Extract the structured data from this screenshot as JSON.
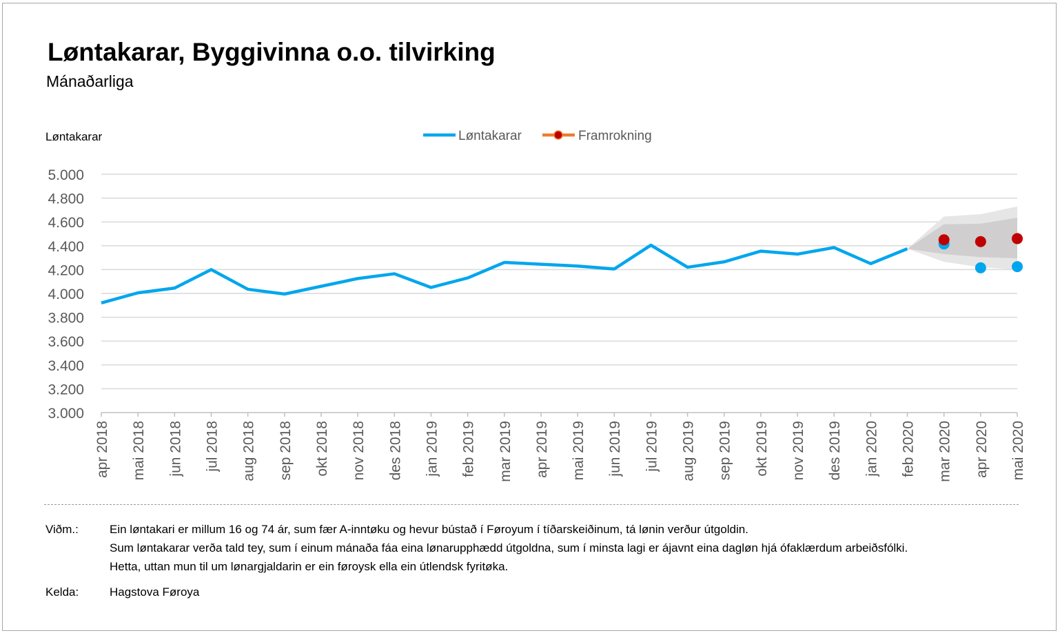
{
  "title": "Løntakarar, Byggivinna o.o. tilvirking",
  "subtitle": "Mánaðarliga",
  "notes": {
    "label": "Viðm.:",
    "lines": [
      "Ein løntakari er millum 16 og 74 ár, sum fær A-inntøku og hevur bústað í Føroyum í tíðarskeiðinum, tá lønin verður útgoldin.",
      "Sum løntakarar verða tald tey, sum í einum mánaða fáa eina lønarupphædd útgoldna, sum í minsta lagi er ájavnt eina dagløn hjá ófaklærdum arbeiðsfólki.",
      "Hetta, uttan mun til um lønargjaldarin er ein føroysk ella ein útlendsk fyritøka."
    ],
    "source_label": "Kelda:",
    "source": "Hagstova Føroya"
  },
  "chart_data": {
    "type": "line",
    "ylabel": "Løntakarar",
    "ylim": [
      3000,
      5000
    ],
    "yticks": [
      "3.000",
      "3.200",
      "3.400",
      "3.600",
      "3.800",
      "4.000",
      "4.200",
      "4.400",
      "4.600",
      "4.800",
      "5.000"
    ],
    "grid": true,
    "legend_placement": "top-center",
    "categories": [
      "apr 2018",
      "mai 2018",
      "jun 2018",
      "jul 2018",
      "aug 2018",
      "sep 2018",
      "okt 2018",
      "nov 2018",
      "des 2018",
      "jan 2019",
      "feb 2019",
      "mar 2019",
      "apr 2019",
      "mai 2019",
      "jun 2019",
      "jul 2019",
      "aug 2019",
      "sep 2019",
      "okt 2019",
      "nov 2019",
      "des 2019",
      "jan 2020",
      "feb 2020",
      "mar 2020",
      "apr 2020",
      "mai 2020"
    ],
    "series": [
      {
        "name": "Løntakarar",
        "color": "#00a6ed",
        "values": [
          3920,
          4005,
          4045,
          4200,
          4035,
          3995,
          4060,
          4125,
          4165,
          4050,
          4130,
          4260,
          4245,
          4230,
          4205,
          4405,
          4220,
          4265,
          4355,
          4330,
          4385,
          4250,
          4375,
          4415,
          4215,
          4225
        ]
      },
      {
        "name": "Framrokning",
        "color": "#c00000",
        "legend_line_color": "#ed7d31",
        "values": [
          null,
          null,
          null,
          null,
          null,
          null,
          null,
          null,
          null,
          null,
          null,
          null,
          null,
          null,
          null,
          null,
          null,
          null,
          null,
          null,
          null,
          null,
          null,
          4450,
          4435,
          4460
        ]
      }
    ],
    "forecast_band": {
      "categories": [
        "feb 2020",
        "mar 2020",
        "apr 2020",
        "mai 2020"
      ],
      "outer_upper": [
        4375,
        4645,
        4665,
        4730
      ],
      "inner_upper": [
        4375,
        4580,
        4585,
        4635
      ],
      "inner_lower": [
        4375,
        4330,
        4305,
        4295
      ],
      "outer_lower": [
        4375,
        4265,
        4220,
        4200
      ],
      "outer_color": "#e6e6e6",
      "inner_color": "#d0cece"
    }
  }
}
